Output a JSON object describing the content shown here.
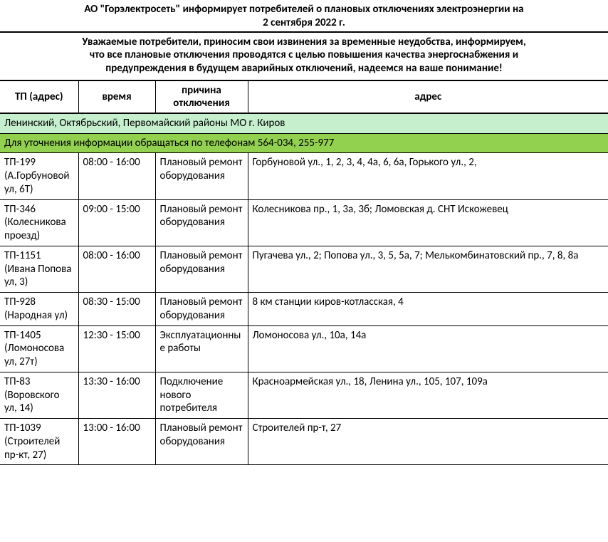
{
  "title_line1": "АО \"Горэлектросеть\" информирует потребителей о плановых отключениях электроэнергии на",
  "title_line2": "2 сентября 2022 г.",
  "notice_line1": "Уважаемые потребители, приносим свои извинения за временные неудобства, информируем,",
  "notice_line2": "что все плановые отключения проводятся с целью повышения качества энергоснабжения и",
  "notice_line3": "предупреждения в будущем аварийных отключений, надеемся на ваше понимание!",
  "headers": {
    "tp": "ТП (адрес)",
    "time": "время",
    "reason": "причина отключения",
    "address": "адрес"
  },
  "banners": {
    "districts": "Ленинский, Октябрьский, Первомайский районы МО г. Киров",
    "phones": "Для уточнения информации обращаться по телефонам 564-034, 255-977"
  },
  "banner_colors": {
    "light": "#c6efce",
    "dark": "#92d050"
  },
  "rows": [
    {
      "tp": "ТП-199 (А.Горбуновой ул, 6Т)",
      "time": "08:00 - 16:00",
      "reason": "Плановый ремонт оборудования",
      "address": "Горбуновой ул., 1, 2, 3, 4, 4а, 6, 6а, Горького ул., 2,"
    },
    {
      "tp": "ТП-346 (Колесникова проезд)",
      "time": "09:00 - 15:00",
      "reason": "Плановый ремонт оборудования",
      "address": "Колесникова пр., 1, 3а, 3б; Ломовская д. СНТ Искожевец"
    },
    {
      "tp": "ТП-1151 (Ивана Попова ул, 3)",
      "time": "08:00 - 16:00",
      "reason": "Плановый ремонт оборудования",
      "address": "Пугачева ул., 2; Попова ул., 3, 5, 5а, 7; Мелькомбинатовский пр., 7, 8, 8а"
    },
    {
      "tp": "ТП-928 (Народная ул)",
      "time": "08:30 - 15:00",
      "reason": "Плановый ремонт оборудования",
      "address": "8 км станции киров-котласская, 4"
    },
    {
      "tp": "ТП-1405 (Ломоносова ул, 27т)",
      "time": "12:30 - 15:00",
      "reason": "Эксплуатационные работы",
      "address": "Ломоносова ул., 10а, 14а"
    },
    {
      "tp": "ТП-83 (Воровского ул, 14)",
      "time": "13:30 - 16:00",
      "reason": "Подключение нового потребителя",
      "address": "Красноармейская ул., 18, Ленина ул., 105, 107, 109а"
    },
    {
      "tp": "ТП-1039 (Строителей пр-кт, 27)",
      "time": "13:00 - 16:00",
      "reason": "Плановый ремонт оборудования",
      "address": "Строителей пр-т, 27"
    }
  ]
}
